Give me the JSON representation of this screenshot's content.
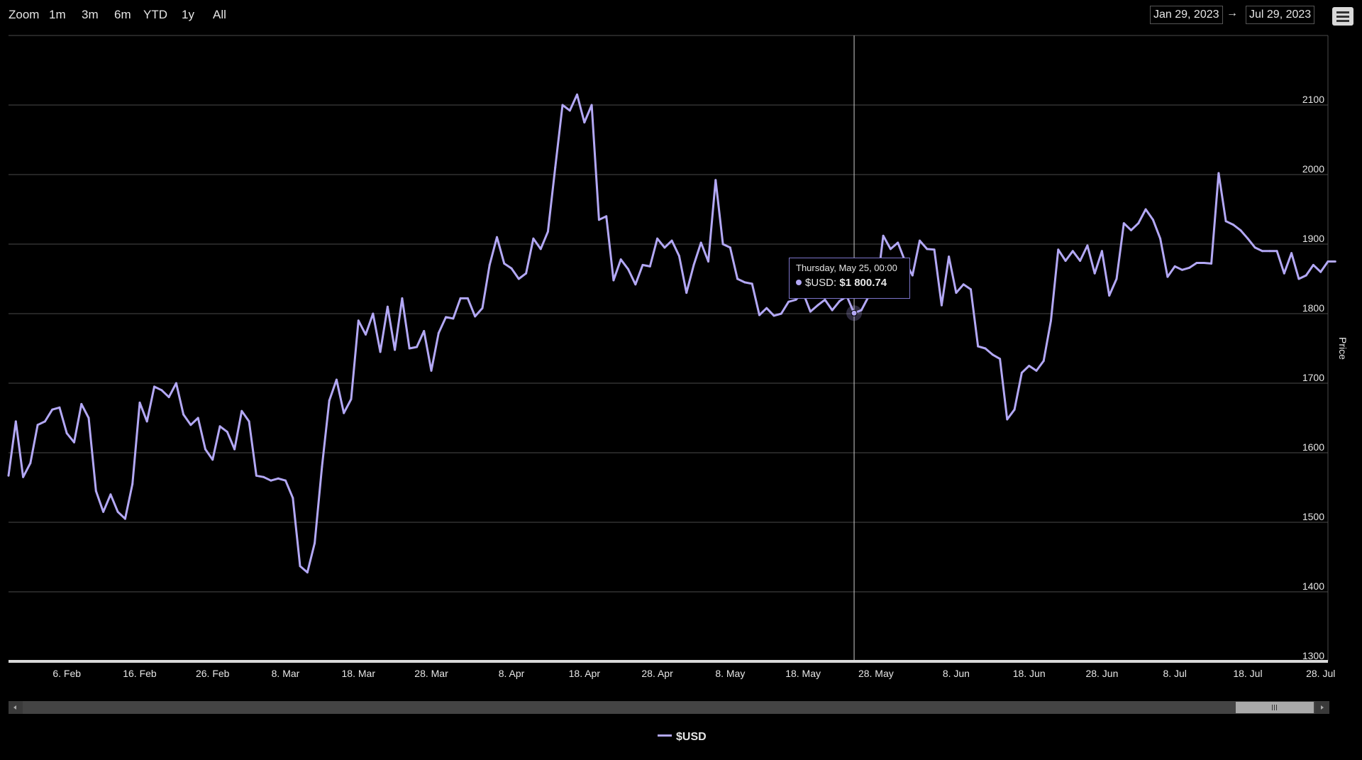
{
  "toolbar": {
    "zoom_label": "Zoom",
    "buttons": [
      "1m",
      "3m",
      "6m",
      "YTD",
      "1y",
      "All"
    ],
    "from_date": "Jan 29, 2023",
    "arrow": "→",
    "to_date": "Jul 29, 2023"
  },
  "colors": {
    "series": "#b3a8f5",
    "background": "#000000",
    "grid": "#4a4a4a"
  },
  "tooltip": {
    "date": "Thursday, May 25, 00:00",
    "series_label": "$USD:",
    "value": "$1 800.74"
  },
  "chart_data": {
    "type": "line",
    "title": "",
    "xlabel": "",
    "ylabel": "Price",
    "ylim": [
      1300,
      2200
    ],
    "yticks": [
      1300,
      1400,
      1500,
      1600,
      1700,
      1800,
      1900,
      2000,
      2100
    ],
    "xlim": [
      "2023-01-29",
      "2023-07-29"
    ],
    "xticks": [
      {
        "date": "2023-02-06",
        "label": "6. Feb"
      },
      {
        "date": "2023-02-16",
        "label": "16. Feb"
      },
      {
        "date": "2023-02-26",
        "label": "26. Feb"
      },
      {
        "date": "2023-03-08",
        "label": "8. Mar"
      },
      {
        "date": "2023-03-18",
        "label": "18. Mar"
      },
      {
        "date": "2023-03-28",
        "label": "28. Mar"
      },
      {
        "date": "2023-04-08",
        "label": "8. Apr"
      },
      {
        "date": "2023-04-18",
        "label": "18. Apr"
      },
      {
        "date": "2023-04-28",
        "label": "28. Apr"
      },
      {
        "date": "2023-05-08",
        "label": "8. May"
      },
      {
        "date": "2023-05-18",
        "label": "18. May"
      },
      {
        "date": "2023-05-28",
        "label": "28. May"
      },
      {
        "date": "2023-06-08",
        "label": "8. Jun"
      },
      {
        "date": "2023-06-18",
        "label": "18. Jun"
      },
      {
        "date": "2023-06-28",
        "label": "28. Jun"
      },
      {
        "date": "2023-07-08",
        "label": "8. Jul"
      },
      {
        "date": "2023-07-18",
        "label": "18. Jul"
      },
      {
        "date": "2023-07-28",
        "label": "28. Jul"
      }
    ],
    "grid": true,
    "legend": "bottom-center",
    "highlight": {
      "date": "2023-05-25",
      "value": 1800.74
    },
    "series": [
      {
        "name": "$USD",
        "start_date": "2023-01-29",
        "values": [
          1567,
          1645,
          1565,
          1585,
          1640,
          1645,
          1662,
          1665,
          1628,
          1615,
          1670,
          1650,
          1545,
          1515,
          1540,
          1515,
          1505,
          1555,
          1672,
          1645,
          1695,
          1690,
          1680,
          1700,
          1655,
          1640,
          1650,
          1605,
          1590,
          1638,
          1630,
          1605,
          1660,
          1645,
          1567,
          1565,
          1560,
          1563,
          1560,
          1535,
          1437,
          1428,
          1470,
          1580,
          1675,
          1705,
          1657,
          1677,
          1790,
          1770,
          1800,
          1745,
          1810,
          1748,
          1822,
          1750,
          1752,
          1775,
          1718,
          1772,
          1795,
          1793,
          1822,
          1822,
          1796,
          1808,
          1870,
          1910,
          1872,
          1865,
          1850,
          1858,
          1908,
          1893,
          1918,
          2010,
          2100,
          2092,
          2115,
          2075,
          2100,
          1935,
          1940,
          1848,
          1878,
          1864,
          1842,
          1870,
          1868,
          1908,
          1895,
          1905,
          1883,
          1830,
          1870,
          1902,
          1875,
          1992,
          1900,
          1895,
          1850,
          1845,
          1843,
          1798,
          1808,
          1797,
          1800,
          1817,
          1820,
          1830,
          1803,
          1812,
          1820,
          1805,
          1818,
          1825,
          1800.74,
          1805,
          1825,
          1827,
          1912,
          1893,
          1902,
          1875,
          1855,
          1905,
          1893,
          1892,
          1812,
          1882,
          1830,
          1842,
          1835,
          1753,
          1750,
          1741,
          1735,
          1648,
          1662,
          1715,
          1725,
          1718,
          1732,
          1790,
          1892,
          1876,
          1890,
          1876,
          1898,
          1858,
          1890,
          1826,
          1850,
          1930,
          1920,
          1930,
          1950,
          1935,
          1908,
          1853,
          1868,
          1863,
          1866,
          1873,
          1873,
          1872,
          2002,
          1933,
          1928,
          1920,
          1908,
          1895,
          1890,
          1890,
          1890,
          1858,
          1887,
          1850,
          1855,
          1870,
          1860,
          1875,
          1875
        ]
      }
    ]
  }
}
